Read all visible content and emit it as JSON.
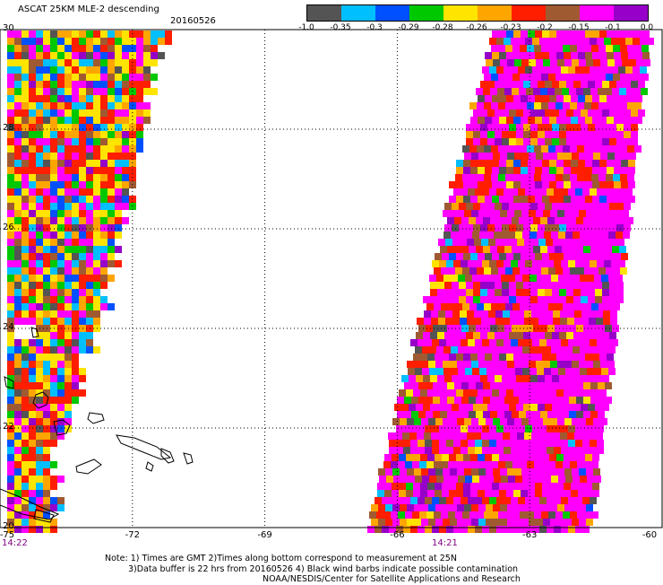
{
  "header": {
    "title": "ASCAT 25KM MLE-2 descending",
    "date": "20160526"
  },
  "legend": {
    "colors": [
      "#545454",
      "#00bfff",
      "#0050ff",
      "#00c800",
      "#ffe400",
      "#ffa500",
      "#ff1e00",
      "#a05a32",
      "#ff00ff",
      "#9600c8"
    ],
    "tick_labels": [
      "-1.0",
      "-0.35",
      "-0.3",
      "-0.29",
      "-0.28",
      "-0.26",
      "-0.23",
      "-0.2",
      "-0.15",
      "-0.1",
      "0.0"
    ]
  },
  "map": {
    "lon_labels": [
      "-75",
      "-72",
      "-69",
      "-66",
      "-63",
      "-60"
    ],
    "lat_labels": [
      "30",
      "28",
      "26",
      "24",
      "22",
      "20"
    ],
    "lon_range": [
      -75,
      -60
    ],
    "lat_range": [
      20,
      30
    ],
    "grid": "dotted",
    "pass_times": [
      "14:22",
      "14:21"
    ]
  },
  "footer": {
    "notes": [
      "Note: 1) Times are GMT 2)Times along bottom correspond to measurement at 25N",
      "3)Data buffer is 22 hrs from 20160526 4) Black wind barbs indicate possible contamination",
      "NOAA/NESDIS/Center for Satellite Applications and Research"
    ]
  }
}
